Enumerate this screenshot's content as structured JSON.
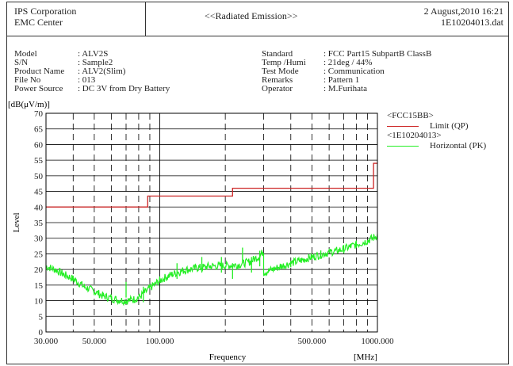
{
  "header": {
    "company": "IPS Corporation",
    "center": "EMC Center",
    "title": "<<Radiated Emission>>",
    "date": "2 August,2010 16:21",
    "file": "1E10204013.dat"
  },
  "info_left": [
    {
      "label": "Model",
      "value": ": ALV2S"
    },
    {
      "label": "S/N",
      "value": ": Sample2"
    },
    {
      "label": "Product Name",
      "value": ": ALV2(Slim)"
    },
    {
      "label": "File No",
      "value": ": 013"
    },
    {
      "label": "Power Source",
      "value": ": DC 3V from Dry Battery"
    }
  ],
  "info_right": [
    {
      "label": "Standard",
      "value": ": FCC Part15 SubpartB ClassB"
    },
    {
      "label": "Temp /Humi",
      "value": ": 21deg / 44%"
    },
    {
      "label": "Test Mode",
      "value": ": Communication"
    },
    {
      "label": "Remarks",
      "value": ": Pattern 1"
    },
    {
      "label": "Operator",
      "value": ": M.Furihata"
    }
  ],
  "legend": {
    "group1": "<FCC15BB>",
    "item1": "Limit (QP)",
    "group2": "<1E10204013>",
    "item2": "Horizontal (PK)"
  },
  "colors": {
    "limit": "#cc2222",
    "horizontal": "#22ee22",
    "grid": "#000000"
  },
  "chart_data": {
    "type": "line",
    "xscale": "log",
    "xlim": [
      30,
      1000
    ],
    "ylim": [
      0,
      70
    ],
    "y_unit": "[dB(μV/m)]",
    "ylabel": "Level",
    "xlabel": "Frequency",
    "x_unit": "[MHz]",
    "yticks": [
      0,
      5,
      10,
      15,
      20,
      25,
      30,
      35,
      40,
      45,
      50,
      55,
      60,
      65,
      70
    ],
    "xticks": [
      {
        "value": 30,
        "label": "30.000"
      },
      {
        "value": 50,
        "label": "50.000"
      },
      {
        "value": 100,
        "label": "100.000"
      },
      {
        "value": 500,
        "label": "500.000"
      },
      {
        "value": 1000,
        "label": "1000.000"
      }
    ],
    "grid": true,
    "legend_position": "right",
    "series": [
      {
        "name": "Limit (QP)",
        "step": true,
        "points": [
          [
            30,
            40
          ],
          [
            88,
            40
          ],
          [
            88,
            43.5
          ],
          [
            216,
            43.5
          ],
          [
            216,
            46
          ],
          [
            960,
            46
          ],
          [
            960,
            54
          ],
          [
            1000,
            54
          ]
        ]
      },
      {
        "name": "Horizontal (PK)",
        "points": [
          [
            30,
            21
          ],
          [
            33,
            20
          ],
          [
            36,
            18.5
          ],
          [
            40,
            17
          ],
          [
            45,
            14.5
          ],
          [
            50,
            13
          ],
          [
            55,
            11.5
          ],
          [
            60,
            10.8
          ],
          [
            65,
            10.2
          ],
          [
            70,
            10
          ],
          [
            75,
            10.3
          ],
          [
            80,
            11
          ],
          [
            85,
            12.5
          ],
          [
            90,
            14
          ],
          [
            95,
            15.3
          ],
          [
            100,
            16.5
          ],
          [
            110,
            18
          ],
          [
            120,
            19
          ],
          [
            130,
            19.8
          ],
          [
            150,
            20.5
          ],
          [
            170,
            21
          ],
          [
            200,
            21.2
          ],
          [
            230,
            21.5
          ],
          [
            260,
            22.5
          ],
          [
            290,
            24.5
          ],
          [
            300,
            26
          ],
          [
            300,
            19
          ],
          [
            330,
            20
          ],
          [
            360,
            21
          ],
          [
            400,
            22
          ],
          [
            450,
            23
          ],
          [
            500,
            24
          ],
          [
            550,
            24.8
          ],
          [
            600,
            25.5
          ],
          [
            650,
            26
          ],
          [
            700,
            26.5
          ],
          [
            750,
            27.3
          ],
          [
            800,
            28
          ],
          [
            850,
            28.5
          ],
          [
            900,
            29.2
          ],
          [
            950,
            30
          ],
          [
            1000,
            31
          ]
        ],
        "spikes": [
          [
            70,
            16
          ],
          [
            84,
            14.5
          ],
          [
            120,
            22
          ],
          [
            156,
            24
          ],
          [
            192,
            24
          ],
          [
            216,
            22
          ],
          [
            240,
            27
          ],
          [
            264,
            24
          ],
          [
            288,
            26
          ]
        ]
      }
    ]
  }
}
